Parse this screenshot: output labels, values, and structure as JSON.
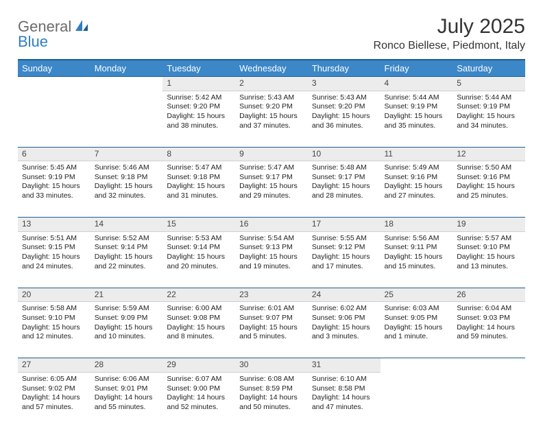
{
  "logo": {
    "part1": "General",
    "part2": "Blue"
  },
  "title": "July 2025",
  "location": "Ronco Biellese, Piedmont, Italy",
  "colors": {
    "header_bg": "#3b87c8",
    "header_border": "#1f5d8f",
    "daynum_bg": "#ececec",
    "text": "#222222",
    "logo_gray": "#6b6b6b",
    "logo_blue": "#2f7fc2"
  },
  "weekdays": [
    "Sunday",
    "Monday",
    "Tuesday",
    "Wednesday",
    "Thursday",
    "Friday",
    "Saturday"
  ],
  "weeks": [
    [
      null,
      null,
      {
        "n": "1",
        "sr": "5:42 AM",
        "ss": "9:20 PM",
        "dl": "15 hours and 38 minutes."
      },
      {
        "n": "2",
        "sr": "5:43 AM",
        "ss": "9:20 PM",
        "dl": "15 hours and 37 minutes."
      },
      {
        "n": "3",
        "sr": "5:43 AM",
        "ss": "9:20 PM",
        "dl": "15 hours and 36 minutes."
      },
      {
        "n": "4",
        "sr": "5:44 AM",
        "ss": "9:19 PM",
        "dl": "15 hours and 35 minutes."
      },
      {
        "n": "5",
        "sr": "5:44 AM",
        "ss": "9:19 PM",
        "dl": "15 hours and 34 minutes."
      }
    ],
    [
      {
        "n": "6",
        "sr": "5:45 AM",
        "ss": "9:19 PM",
        "dl": "15 hours and 33 minutes."
      },
      {
        "n": "7",
        "sr": "5:46 AM",
        "ss": "9:18 PM",
        "dl": "15 hours and 32 minutes."
      },
      {
        "n": "8",
        "sr": "5:47 AM",
        "ss": "9:18 PM",
        "dl": "15 hours and 31 minutes."
      },
      {
        "n": "9",
        "sr": "5:47 AM",
        "ss": "9:17 PM",
        "dl": "15 hours and 29 minutes."
      },
      {
        "n": "10",
        "sr": "5:48 AM",
        "ss": "9:17 PM",
        "dl": "15 hours and 28 minutes."
      },
      {
        "n": "11",
        "sr": "5:49 AM",
        "ss": "9:16 PM",
        "dl": "15 hours and 27 minutes."
      },
      {
        "n": "12",
        "sr": "5:50 AM",
        "ss": "9:16 PM",
        "dl": "15 hours and 25 minutes."
      }
    ],
    [
      {
        "n": "13",
        "sr": "5:51 AM",
        "ss": "9:15 PM",
        "dl": "15 hours and 24 minutes."
      },
      {
        "n": "14",
        "sr": "5:52 AM",
        "ss": "9:14 PM",
        "dl": "15 hours and 22 minutes."
      },
      {
        "n": "15",
        "sr": "5:53 AM",
        "ss": "9:14 PM",
        "dl": "15 hours and 20 minutes."
      },
      {
        "n": "16",
        "sr": "5:54 AM",
        "ss": "9:13 PM",
        "dl": "15 hours and 19 minutes."
      },
      {
        "n": "17",
        "sr": "5:55 AM",
        "ss": "9:12 PM",
        "dl": "15 hours and 17 minutes."
      },
      {
        "n": "18",
        "sr": "5:56 AM",
        "ss": "9:11 PM",
        "dl": "15 hours and 15 minutes."
      },
      {
        "n": "19",
        "sr": "5:57 AM",
        "ss": "9:10 PM",
        "dl": "15 hours and 13 minutes."
      }
    ],
    [
      {
        "n": "20",
        "sr": "5:58 AM",
        "ss": "9:10 PM",
        "dl": "15 hours and 12 minutes."
      },
      {
        "n": "21",
        "sr": "5:59 AM",
        "ss": "9:09 PM",
        "dl": "15 hours and 10 minutes."
      },
      {
        "n": "22",
        "sr": "6:00 AM",
        "ss": "9:08 PM",
        "dl": "15 hours and 8 minutes."
      },
      {
        "n": "23",
        "sr": "6:01 AM",
        "ss": "9:07 PM",
        "dl": "15 hours and 5 minutes."
      },
      {
        "n": "24",
        "sr": "6:02 AM",
        "ss": "9:06 PM",
        "dl": "15 hours and 3 minutes."
      },
      {
        "n": "25",
        "sr": "6:03 AM",
        "ss": "9:05 PM",
        "dl": "15 hours and 1 minute."
      },
      {
        "n": "26",
        "sr": "6:04 AM",
        "ss": "9:03 PM",
        "dl": "14 hours and 59 minutes."
      }
    ],
    [
      {
        "n": "27",
        "sr": "6:05 AM",
        "ss": "9:02 PM",
        "dl": "14 hours and 57 minutes."
      },
      {
        "n": "28",
        "sr": "6:06 AM",
        "ss": "9:01 PM",
        "dl": "14 hours and 55 minutes."
      },
      {
        "n": "29",
        "sr": "6:07 AM",
        "ss": "9:00 PM",
        "dl": "14 hours and 52 minutes."
      },
      {
        "n": "30",
        "sr": "6:08 AM",
        "ss": "8:59 PM",
        "dl": "14 hours and 50 minutes."
      },
      {
        "n": "31",
        "sr": "6:10 AM",
        "ss": "8:58 PM",
        "dl": "14 hours and 47 minutes."
      },
      null,
      null
    ]
  ],
  "labels": {
    "sunrise": "Sunrise:",
    "sunset": "Sunset:",
    "daylight": "Daylight:"
  }
}
